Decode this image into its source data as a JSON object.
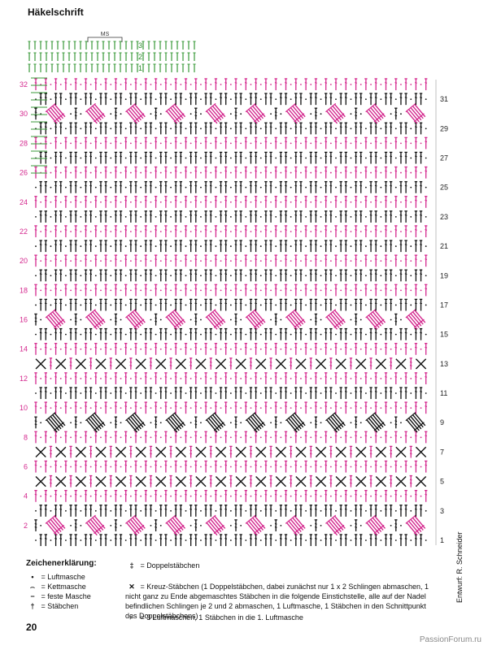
{
  "header": {
    "title": "Häkelschrift"
  },
  "chart_data": {
    "type": "crochet-chart",
    "ms_label": "MS",
    "left_rows": [
      "32",
      "30",
      "28",
      "26",
      "24",
      "22",
      "20",
      "18",
      "16",
      "14",
      "12",
      "10",
      "8",
      "6",
      "4",
      "2"
    ],
    "right_rows": [
      "31",
      "29",
      "27",
      "25",
      "23",
      "21",
      "19",
      "17",
      "15",
      "13",
      "11",
      "9",
      "7",
      "5",
      "3",
      "1"
    ],
    "start_rows": [
      "3",
      "2",
      "1"
    ],
    "colors": {
      "pink": "#d4288e",
      "black": "#111111",
      "green": "#3a9a3a"
    }
  },
  "legend": {
    "title": "Zeichenerklärung:",
    "items": [
      {
        "symbol": "•",
        "text": "= Luftmasche"
      },
      {
        "symbol": "⌢",
        "text": "= Kettmasche"
      },
      {
        "symbol": "−",
        "text": "= feste Masche"
      },
      {
        "symbol": "†",
        "text": "= Stäbchen"
      }
    ],
    "items2": [
      {
        "symbol": "‡",
        "text": "= Doppelstäbchen"
      },
      {
        "symbol": "✕",
        "text": "= Kreuz-Stäbchen (1 Doppelstäbchen, dabei zunächst nur 1 x 2 Schlingen abmaschen, 1 nicht ganz zu Ende abgemaschtes Stäbchen in die folgende Einstichstelle, alle auf der Nadel befindlichen Schlingen je 2 und 2 abmaschen, 1 Luftmasche, 1 Stäbchen in den Schnittpunkt des Doppelstäbchens)"
      },
      {
        "symbol": "⌐",
        "text": "= 3 Luftmaschen, 1 Stäbchen in die 1. Luftmasche"
      }
    ]
  },
  "footer": {
    "page_number": "20",
    "credit": "Entwurf: R. Schneider",
    "watermark": "PassionForum.ru"
  }
}
